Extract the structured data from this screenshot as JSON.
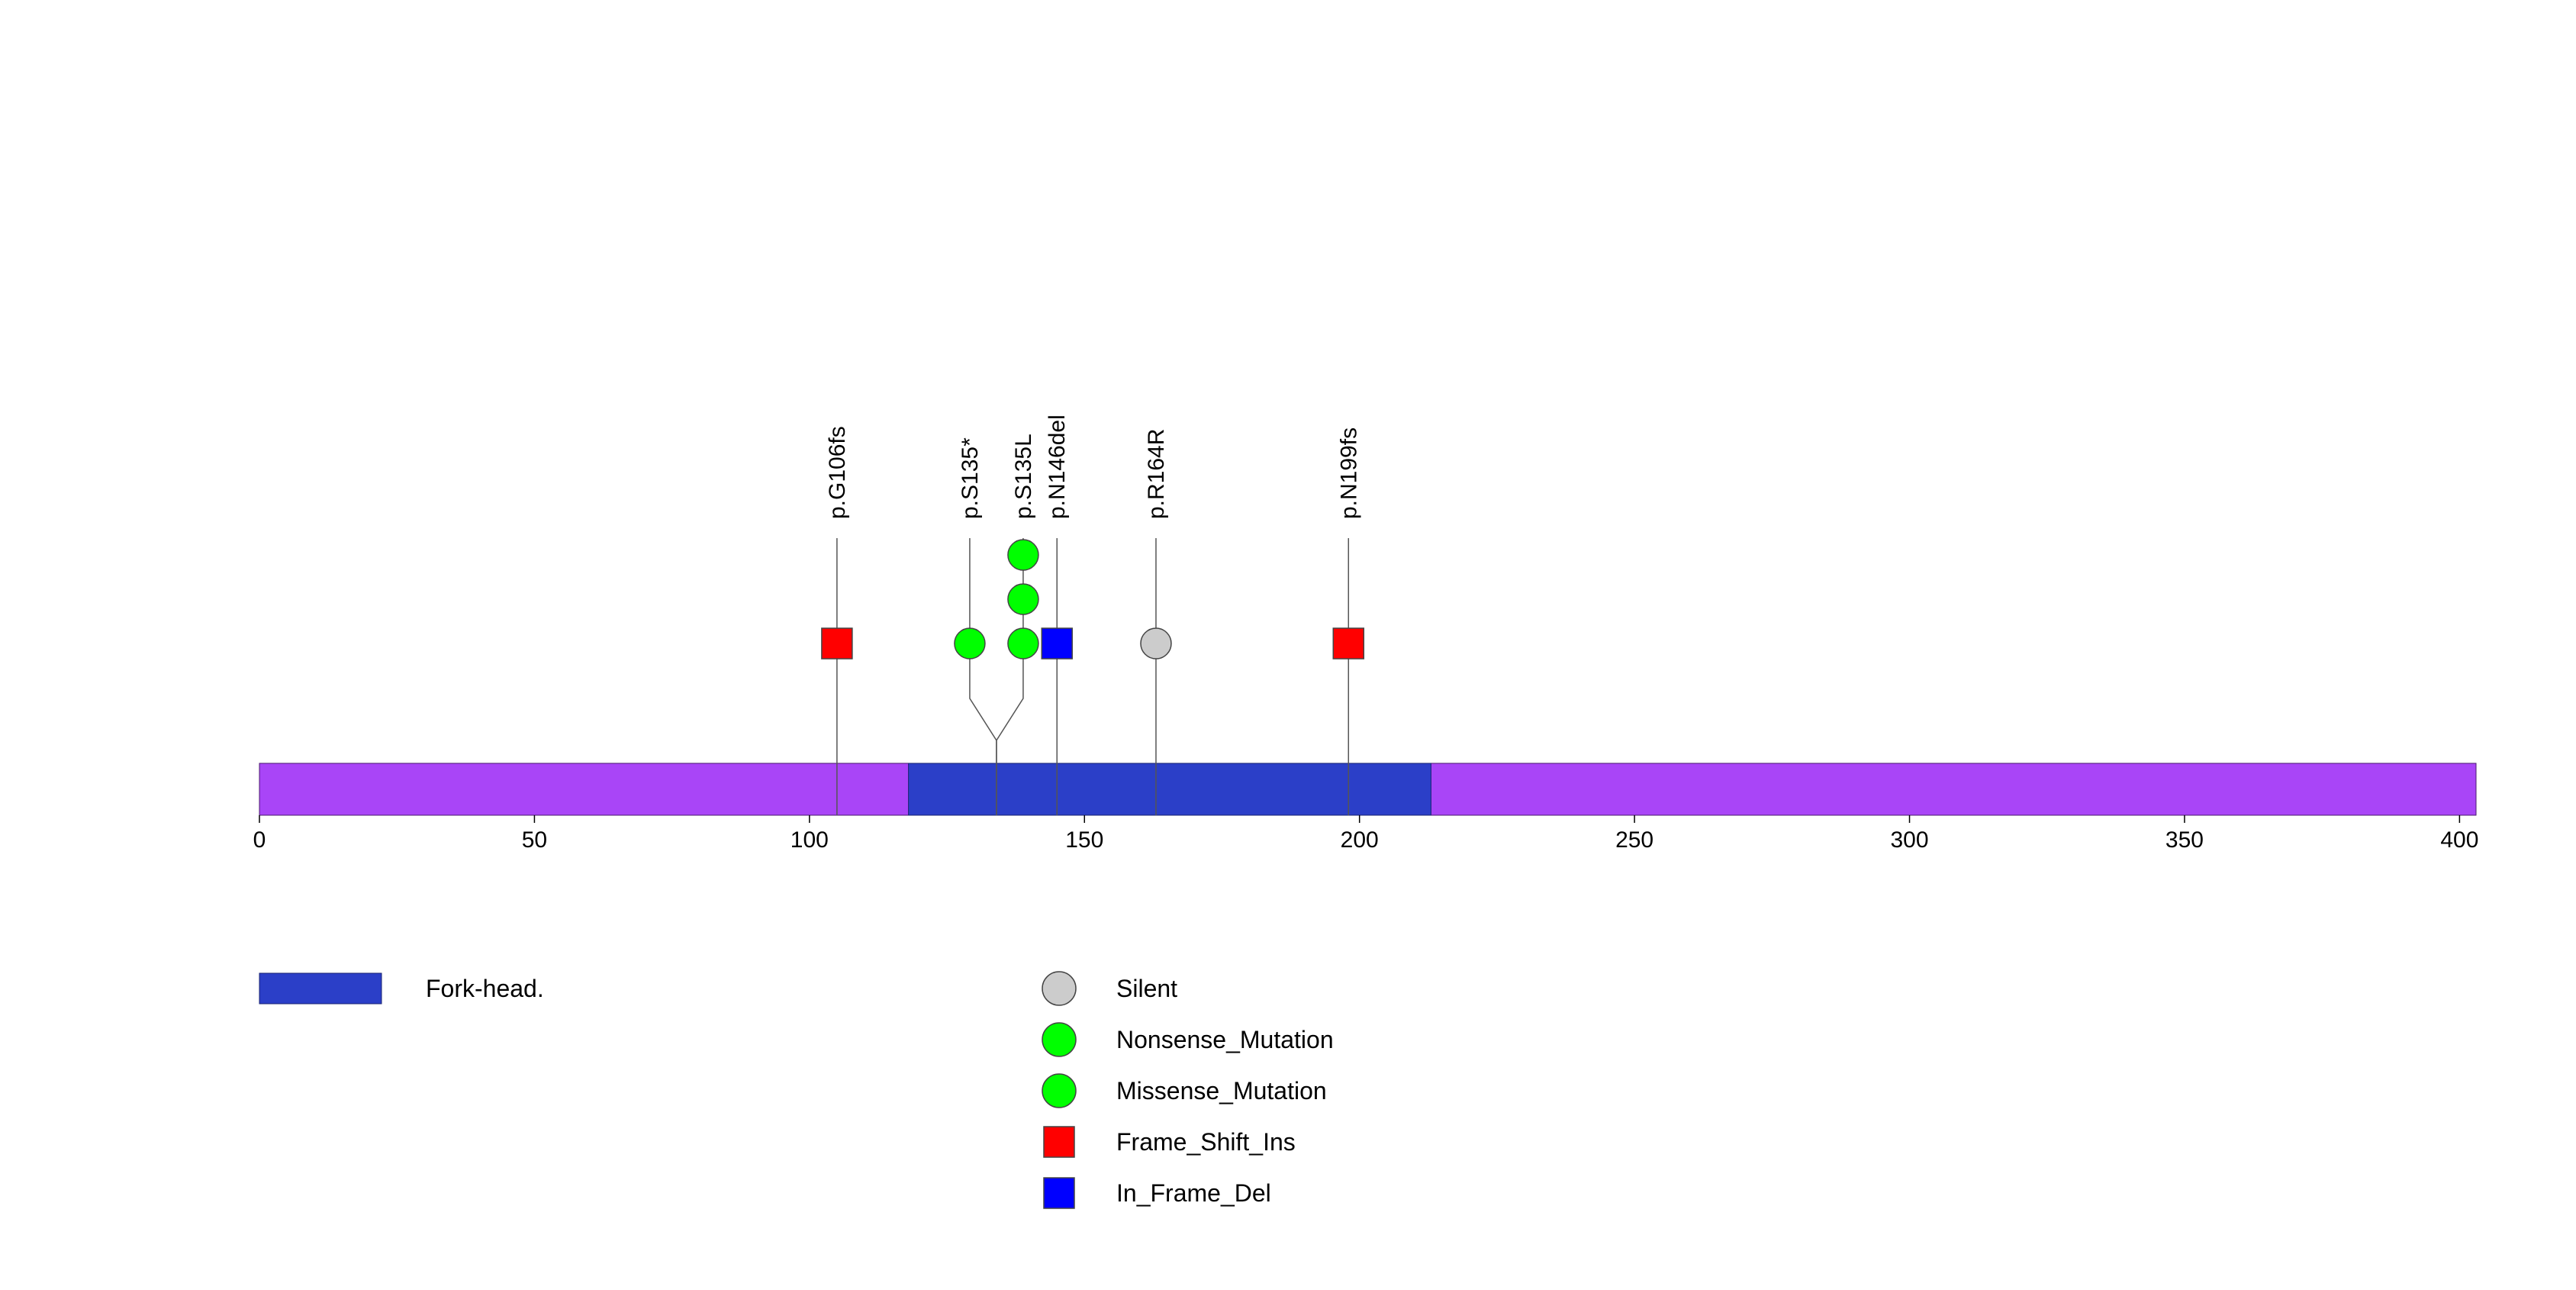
{
  "chart_data": {
    "type": "lollipop",
    "protein_length": 403,
    "axis": {
      "xlim": [
        0,
        403
      ],
      "ticks": [
        0,
        50,
        100,
        150,
        200,
        250,
        300,
        350,
        400
      ],
      "tick_labels": [
        "0",
        "50",
        "100",
        "150",
        "200",
        "250",
        "300",
        "350",
        "400"
      ]
    },
    "domains": [
      {
        "name": "Fork-head.",
        "start": 118,
        "end": 213,
        "color": "#2b3fc8"
      }
    ],
    "backbone_color": "#a945f7",
    "mutations": [
      {
        "label": "p.G106fs",
        "position": 105,
        "count": 1,
        "type": "Frame_Shift_Ins"
      },
      {
        "label": "p.S135*",
        "position": 134,
        "count": 1,
        "type": "Nonsense_Mutation"
      },
      {
        "label": "p.S135L",
        "position": 134,
        "count": 3,
        "type": "Missense_Mutation"
      },
      {
        "label": "p.N146del",
        "position": 145,
        "count": 1,
        "type": "In_Frame_Del"
      },
      {
        "label": "p.R164R",
        "position": 163,
        "count": 1,
        "type": "Silent"
      },
      {
        "label": "p.N199fs",
        "position": 198,
        "count": 1,
        "type": "Frame_Shift_Ins"
      }
    ],
    "legend": {
      "domains": [
        {
          "name": "Fork-head.",
          "color": "#2b3fc8"
        }
      ],
      "mutation_types": [
        {
          "name": "Silent",
          "shape": "circle",
          "color": "#cccccc"
        },
        {
          "name": "Nonsense_Mutation",
          "shape": "circle",
          "color": "#00ff00"
        },
        {
          "name": "Missense_Mutation",
          "shape": "circle",
          "color": "#00ff00"
        },
        {
          "name": "Frame_Shift_Ins",
          "shape": "square",
          "color": "#ff0000"
        },
        {
          "name": "In_Frame_Del",
          "shape": "square",
          "color": "#0000ff"
        }
      ]
    }
  }
}
